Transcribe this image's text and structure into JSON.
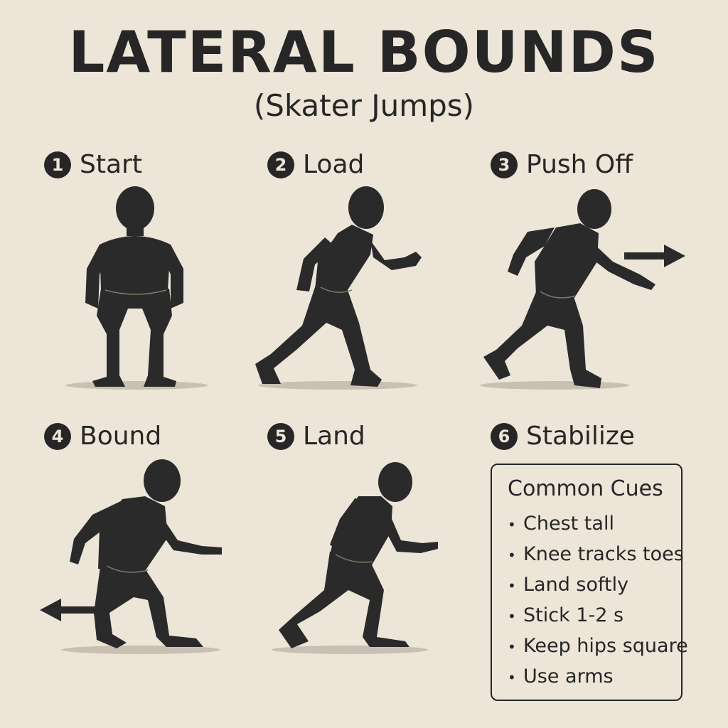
{
  "title": "LATERAL BOUNDS",
  "subtitle": "(Skater Jumps)",
  "steps": [
    {
      "number": "1",
      "label": "Start"
    },
    {
      "number": "2",
      "label": "Load"
    },
    {
      "number": "3",
      "label": "Push Off"
    },
    {
      "number": "4",
      "label": "Bound"
    },
    {
      "number": "5",
      "label": "Land"
    },
    {
      "number": "6",
      "label": "Stabilize"
    }
  ],
  "cues": {
    "title": "Common Cues",
    "bullet": "•",
    "items": [
      "Chest tall",
      "Knee tracks toes",
      "Land softly",
      "Stick 1-2 s",
      "Keep hips square",
      "Use arms"
    ]
  },
  "colors": {
    "background": "#ede5d8",
    "figure": "#2a2a2a",
    "shadow": "#c9c0b3",
    "outline": "#7f7a66"
  },
  "arrows": {
    "push_off": "arrow-right-icon",
    "bound": "arrow-left-icon"
  }
}
